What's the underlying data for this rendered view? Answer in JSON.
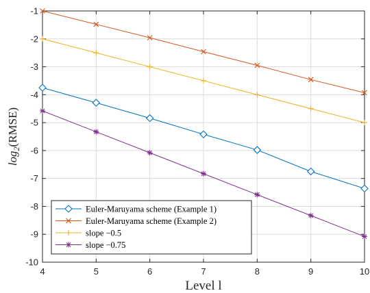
{
  "chart_data": {
    "type": "line",
    "title": "",
    "xlabel": "Level l",
    "ylabel_prefix": "log",
    "ylabel_subscript": "2",
    "ylabel_suffix": "(RMSE)",
    "xlim": [
      4,
      10
    ],
    "ylim": [
      -10,
      -1
    ],
    "x_ticks": [
      4,
      5,
      6,
      7,
      8,
      9,
      10
    ],
    "y_ticks": [
      -1,
      -2,
      -3,
      -4,
      -5,
      -6,
      -7,
      -8,
      -9,
      -10
    ],
    "grid": true,
    "legend_position": "bottom-left",
    "x": [
      4,
      5,
      6,
      7,
      8,
      9,
      10
    ],
    "series": [
      {
        "name": "Euler-Maruyama scheme (Example 1)",
        "color": "#0072BD",
        "marker": "diamond",
        "values": [
          -3.75,
          -4.29,
          -4.84,
          -5.42,
          -5.98,
          -6.75,
          -7.36
        ]
      },
      {
        "name": "Euler-Maruyama scheme (Example 2)",
        "color": "#D95319",
        "marker": "x",
        "values": [
          -1.0,
          -1.48,
          -1.96,
          -2.46,
          -2.95,
          -3.46,
          -3.93
        ]
      },
      {
        "name": "slope −0.5",
        "color": "#EDB120",
        "marker": "plus",
        "values": [
          -2.0,
          -2.5,
          -3.0,
          -3.5,
          -4.0,
          -4.5,
          -5.0
        ]
      },
      {
        "name": "slope −0.75",
        "color": "#7E2F8E",
        "marker": "asterisk",
        "values": [
          -4.58,
          -5.33,
          -6.08,
          -6.83,
          -7.58,
          -8.33,
          -9.08
        ]
      }
    ]
  }
}
